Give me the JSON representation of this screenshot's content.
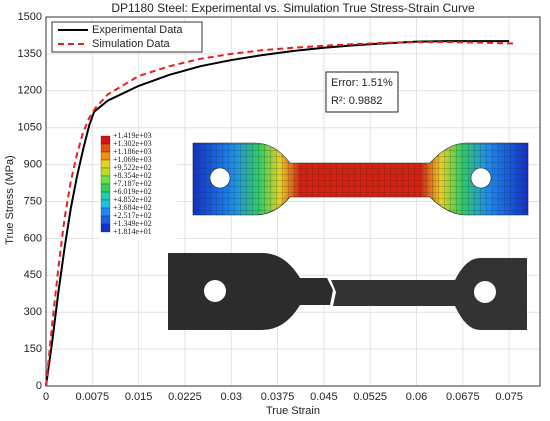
{
  "chart_data": {
    "type": "line",
    "title": "DP1180 Steel: Experimental vs. Simulation True Stress-Strain Curve",
    "x_label": "True Strain",
    "y_label": "True Stress (MPa)",
    "xlim": [
      0,
      0.08
    ],
    "xticks": [
      0,
      0.0075,
      0.015,
      0.0225,
      0.03,
      0.0375,
      0.045,
      0.0525,
      0.06,
      0.0675,
      0.075
    ],
    "ylim": [
      0,
      1500
    ],
    "yticks": [
      0,
      150,
      300,
      450,
      600,
      750,
      900,
      1050,
      1200,
      1350,
      1500
    ],
    "grid": true,
    "legend": "upper-left",
    "series": [
      {
        "name": "Experimental Data",
        "color": "#000000",
        "dash": "solid",
        "x": [
          0,
          0.001,
          0.002,
          0.003,
          0.004,
          0.005,
          0.006,
          0.007,
          0.0078,
          0.01,
          0.015,
          0.02,
          0.025,
          0.03,
          0.035,
          0.04,
          0.045,
          0.05,
          0.055,
          0.06,
          0.065,
          0.07,
          0.075
        ],
        "values": [
          0,
          180,
          380,
          560,
          720,
          850,
          960,
          1060,
          1115,
          1160,
          1220,
          1265,
          1300,
          1325,
          1345,
          1362,
          1375,
          1385,
          1393,
          1400,
          1402,
          1402,
          1402
        ]
      },
      {
        "name": "Simulation Data",
        "color": "#e8201e",
        "dash": "dashed",
        "x": [
          0,
          0.001,
          0.002,
          0.003,
          0.004,
          0.005,
          0.006,
          0.007,
          0.008,
          0.01,
          0.015,
          0.02,
          0.025,
          0.03,
          0.035,
          0.04,
          0.045,
          0.05,
          0.055,
          0.06,
          0.065,
          0.07,
          0.076
        ],
        "values": [
          0,
          250,
          480,
          680,
          830,
          940,
          1030,
          1090,
          1130,
          1185,
          1260,
          1300,
          1330,
          1350,
          1365,
          1375,
          1383,
          1390,
          1395,
          1398,
          1398,
          1396,
          1392
        ]
      }
    ],
    "annotations": [
      "Error: 1.51%",
      "R²: 0.9882"
    ],
    "colorbar": {
      "labels": [
        "+1.419e+03",
        "+1.302e+03",
        "+1.186e+03",
        "+1.069e+03",
        "+9.522e+02",
        "+8.354e+02",
        "+7.187e+02",
        "+6.019e+02",
        "+4.852e+02",
        "+3.684e+02",
        "+2.517e+02",
        "+1.349e+02",
        "+1.814e+01"
      ]
    }
  }
}
